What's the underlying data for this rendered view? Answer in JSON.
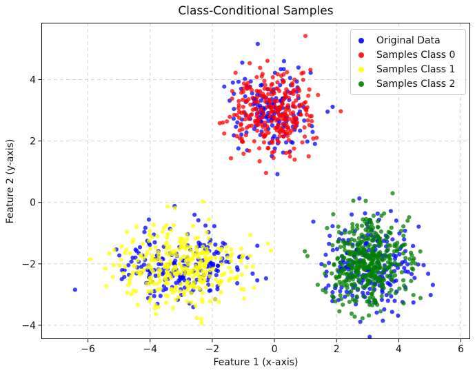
{
  "chart_data": {
    "type": "scatter",
    "title": "Class-Conditional Samples",
    "xlabel": "Feature 1 (x-axis)",
    "ylabel": "Feature 2 (y-axis)",
    "xlim": [
      -7.5,
      6.3
    ],
    "ylim": [
      -4.45,
      5.85
    ],
    "xticks": [
      -6,
      -4,
      -2,
      0,
      2,
      4,
      6
    ],
    "yticks": [
      -4,
      -2,
      0,
      2,
      4
    ],
    "grid": {
      "on": true,
      "style": "dashed",
      "color": "#cccccc"
    },
    "axis_color": "#000000",
    "tick_label_color": "#111111",
    "legend": {
      "position": "upper right"
    },
    "marker": {
      "shape": "dot",
      "radius_px": 3.1,
      "alpha": 0.75
    },
    "series": [
      {
        "name": "Original Data",
        "color": "#0000ff",
        "seed": 7,
        "clusters": [
          {
            "mean": [
              0.0,
              3.0
            ],
            "std": [
              0.62,
              0.66
            ],
            "n": 170
          },
          {
            "mean": [
              -3.0,
              -2.05
            ],
            "std": [
              0.95,
              0.6
            ],
            "n": 200
          },
          {
            "mean": [
              3.0,
              -2.0
            ],
            "std": [
              0.68,
              0.75
            ],
            "n": 230
          }
        ],
        "extra_points": []
      },
      {
        "name": "Samples Class 0",
        "color": "#ff0000",
        "seed": 101,
        "clusters": [
          {
            "mean": [
              0.0,
              3.0
            ],
            "std": [
              0.66,
              0.7
            ],
            "n": 280
          }
        ],
        "extra_points": [
          [
            1.0,
            5.42
          ]
        ]
      },
      {
        "name": "Samples Class 1",
        "color": "#ffff00",
        "seed": 202,
        "clusters": [
          {
            "mean": [
              -3.05,
              -2.05
            ],
            "std": [
              1.05,
              0.62
            ],
            "n": 320
          }
        ],
        "extra_points": []
      },
      {
        "name": "Samples Class 2",
        "color": "#008000",
        "seed": 303,
        "clusters": [
          {
            "mean": [
              3.05,
              -2.0
            ],
            "std": [
              0.6,
              0.68
            ],
            "n": 400
          }
        ],
        "extra_points": []
      }
    ]
  }
}
